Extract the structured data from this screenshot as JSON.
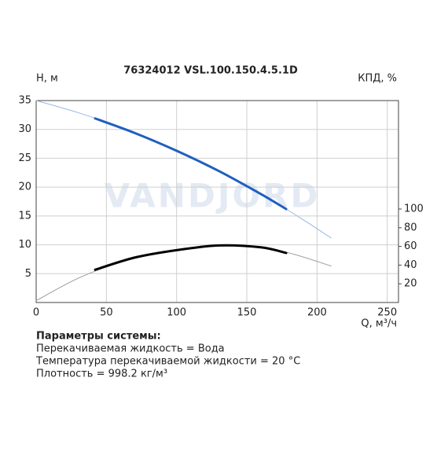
{
  "chart_data": {
    "type": "line",
    "title": "76324012 VSL.100.150.4.5.1D",
    "y_label": "H, м",
    "y2_label": "КПД, %",
    "x_label": "Q, м³/ч",
    "watermark": "VANDJORD",
    "xlim": [
      0,
      258
    ],
    "xticks": [
      0,
      50,
      100,
      150,
      200,
      250
    ],
    "ylim": [
      0,
      35
    ],
    "yticks": [
      5,
      10,
      15,
      20,
      25,
      30,
      35
    ],
    "y2lim": [
      0,
      216
    ],
    "y2ticks": [
      20,
      40,
      60,
      80,
      100
    ],
    "grid": true,
    "series": [
      {
        "color": "#9ab8e6",
        "line_width": 1,
        "x": [
          0,
          30,
          60,
          90,
          120,
          150,
          180,
          210
        ],
        "values": [
          35,
          32.9,
          30.4,
          27.4,
          24.0,
          20.1,
          15.9,
          11.2
        ]
      },
      {
        "color": "#1f5fbf",
        "line_width": 3,
        "x": [
          42,
          70,
          100,
          130,
          160,
          178
        ],
        "values": [
          31.9,
          29.4,
          26.3,
          22.8,
          18.8,
          16.2
        ]
      },
      {
        "color": "#9a9a9a",
        "line_width": 1,
        "axis": "y2",
        "x": [
          0,
          30,
          60,
          90,
          120,
          150,
          180,
          210
        ],
        "values": [
          2,
          26,
          43,
          54,
          60,
          61,
          53,
          39
        ]
      },
      {
        "color": "#000000",
        "line_width": 3,
        "axis": "y2",
        "x": [
          42,
          70,
          100,
          130,
          160,
          178
        ],
        "values": [
          35,
          48,
          56,
          61,
          59,
          53
        ]
      }
    ]
  },
  "params": {
    "heading": "Параметры системы:",
    "lines": [
      "Перекачиваемая жидкость = Вода",
      "Температура перекачиваемой жидкости = 20 °C",
      "Плотность = 998.2 кг/м³"
    ]
  }
}
